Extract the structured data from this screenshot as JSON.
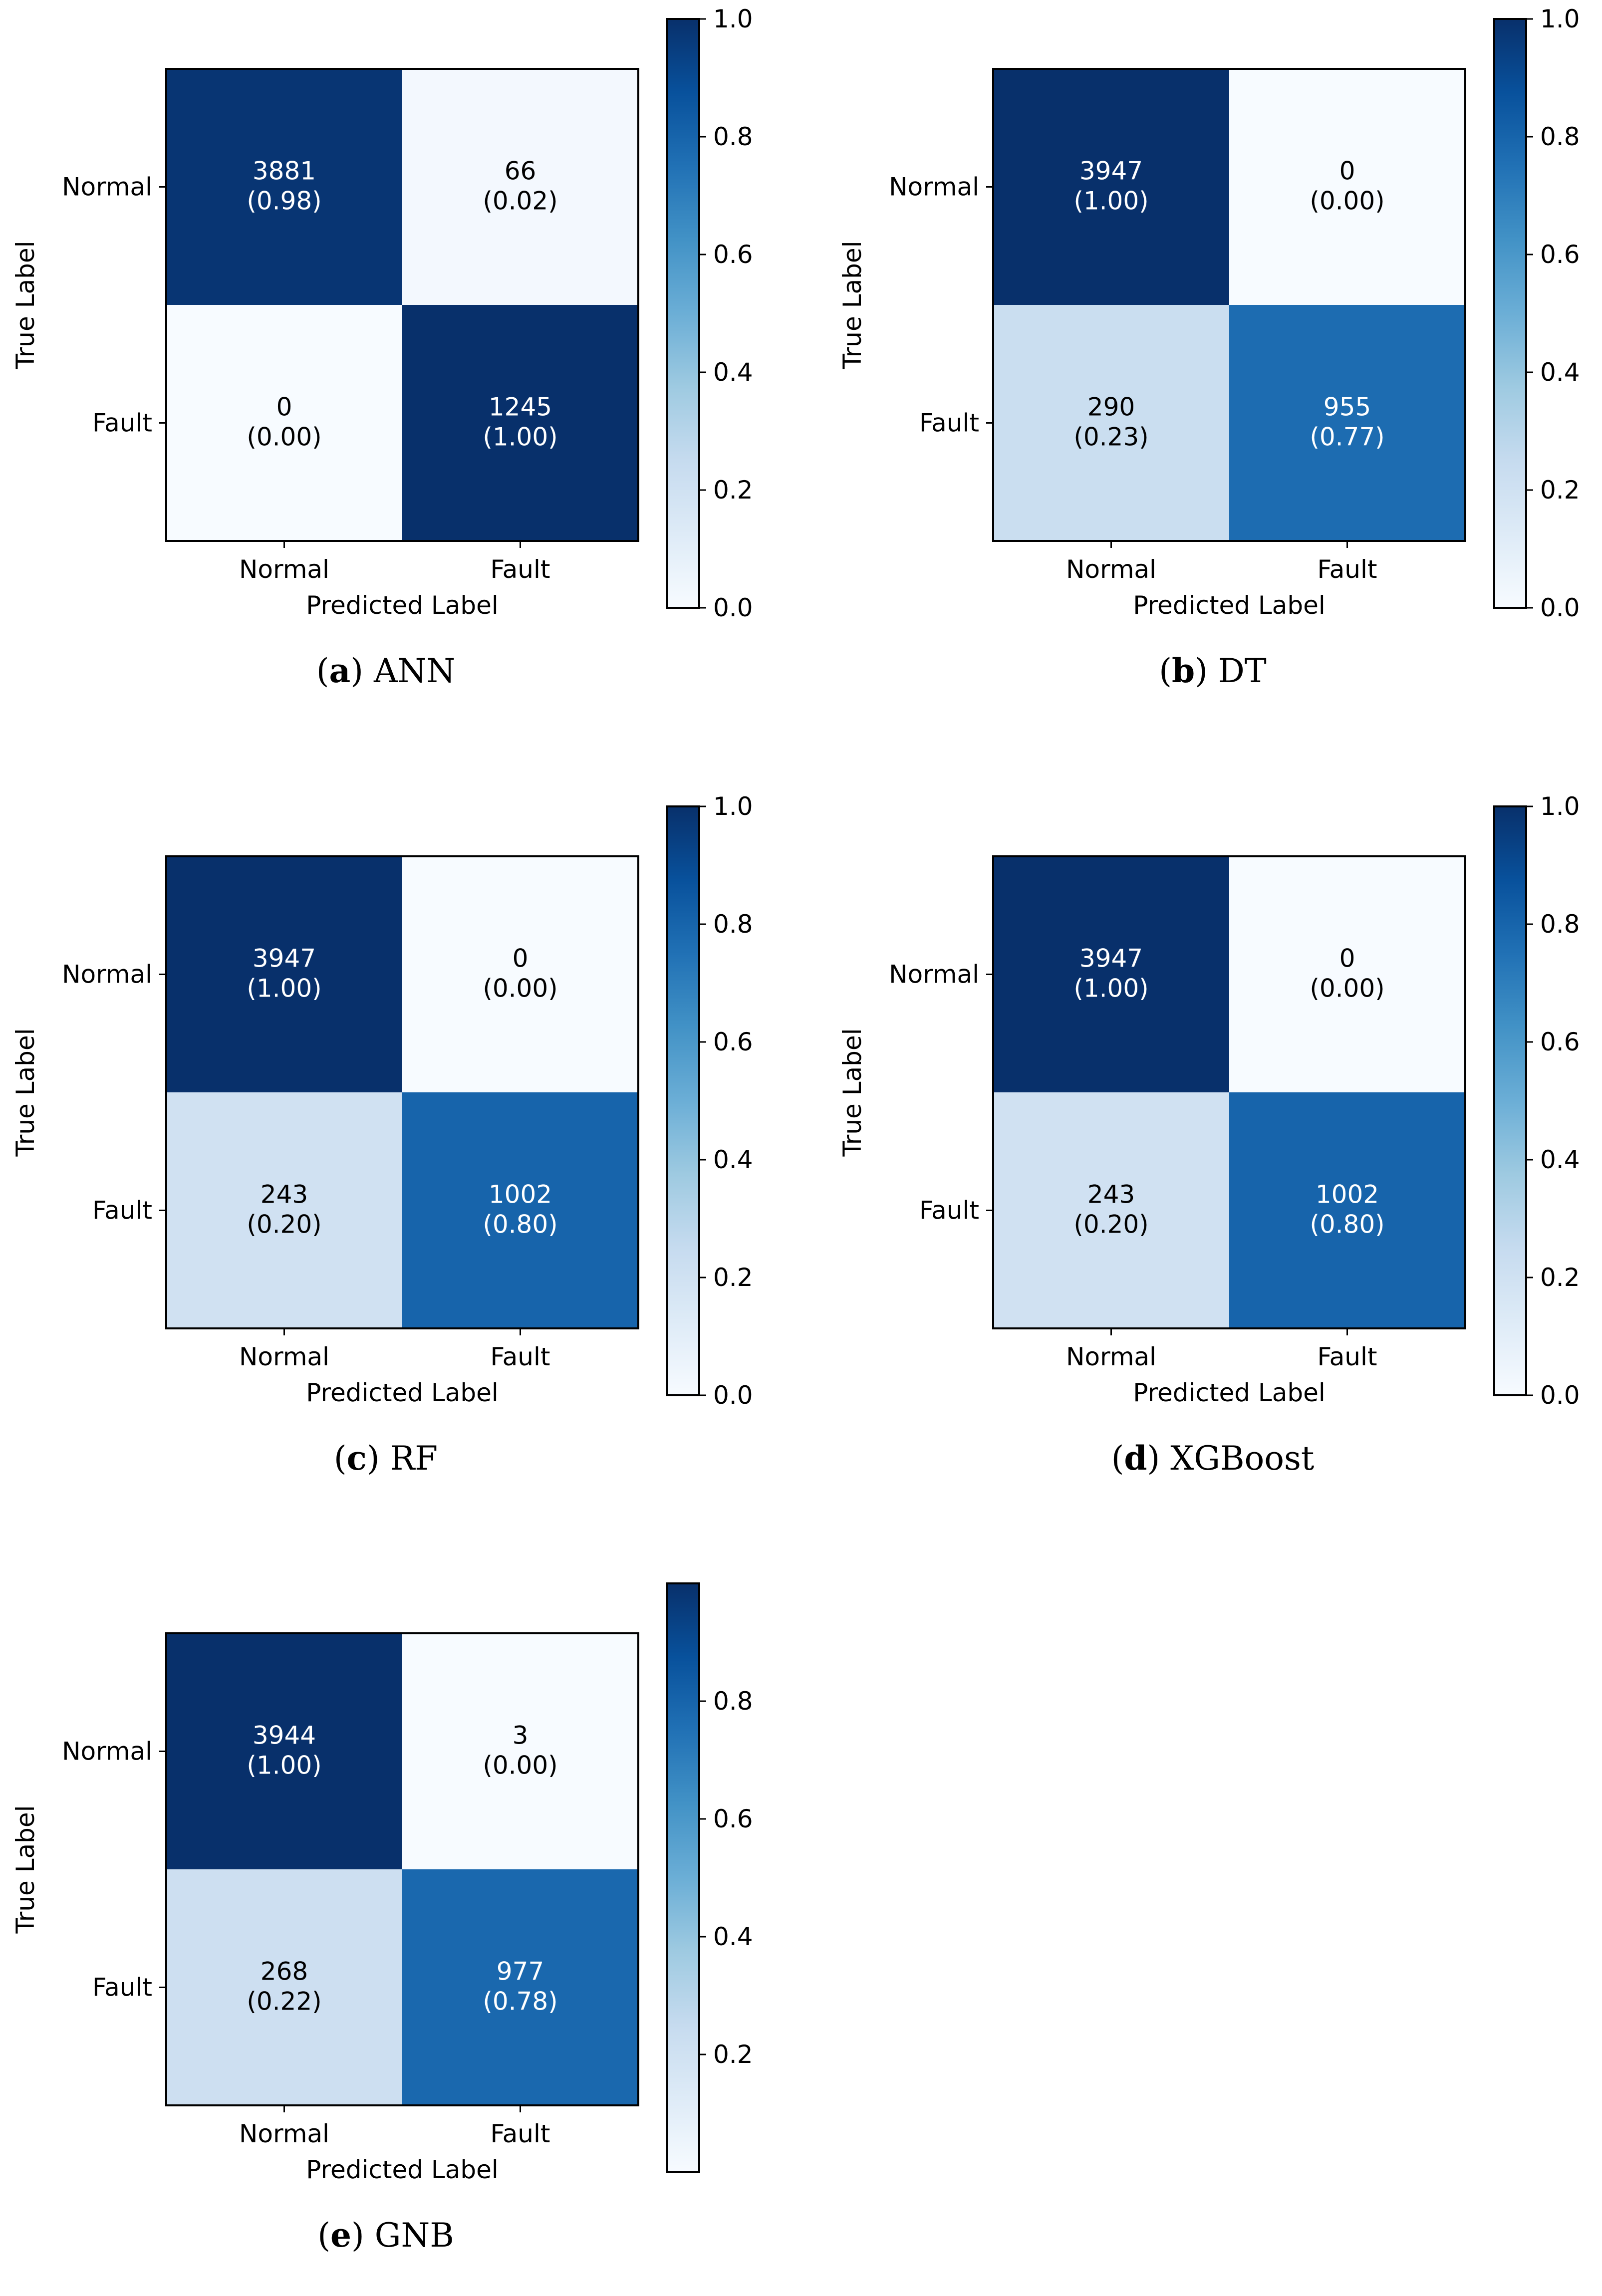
{
  "chart_data": [
    {
      "type": "heatmap",
      "caption_letter": "a",
      "caption_text": "ANN",
      "xlabel": "Predicted Label",
      "ylabel": "True Label",
      "x_categories": [
        "Normal",
        "Fault"
      ],
      "y_categories": [
        "Normal",
        "Fault"
      ],
      "counts": [
        [
          3881,
          66
        ],
        [
          0,
          1245
        ]
      ],
      "ratio_labels": [
        [
          "(0.98)",
          "(0.02)"
        ],
        [
          "(0.00)",
          "(1.00)"
        ]
      ],
      "ratios": [
        [
          0.98,
          0.02
        ],
        [
          0.0,
          1.0
        ]
      ],
      "colorbar": {
        "range": [
          0.0,
          1.0
        ],
        "ticks": [
          "0.0",
          "0.2",
          "0.4",
          "0.6",
          "0.8",
          "1.0"
        ]
      },
      "colormap": "Blues"
    },
    {
      "type": "heatmap",
      "caption_letter": "b",
      "caption_text": "DT",
      "xlabel": "Predicted Label",
      "ylabel": "True Label",
      "x_categories": [
        "Normal",
        "Fault"
      ],
      "y_categories": [
        "Normal",
        "Fault"
      ],
      "counts": [
        [
          3947,
          0
        ],
        [
          290,
          955
        ]
      ],
      "ratio_labels": [
        [
          "(1.00)",
          "(0.00)"
        ],
        [
          "(0.23)",
          "(0.77)"
        ]
      ],
      "ratios": [
        [
          1.0,
          0.0
        ],
        [
          0.23,
          0.77
        ]
      ],
      "colorbar": {
        "range": [
          0.0,
          1.0
        ],
        "ticks": [
          "0.0",
          "0.2",
          "0.4",
          "0.6",
          "0.8",
          "1.0"
        ]
      },
      "colormap": "Blues"
    },
    {
      "type": "heatmap",
      "caption_letter": "c",
      "caption_text": "RF",
      "xlabel": "Predicted Label",
      "ylabel": "True Label",
      "x_categories": [
        "Normal",
        "Fault"
      ],
      "y_categories": [
        "Normal",
        "Fault"
      ],
      "counts": [
        [
          3947,
          0
        ],
        [
          243,
          1002
        ]
      ],
      "ratio_labels": [
        [
          "(1.00)",
          "(0.00)"
        ],
        [
          "(0.20)",
          "(0.80)"
        ]
      ],
      "ratios": [
        [
          1.0,
          0.0
        ],
        [
          0.2,
          0.8
        ]
      ],
      "colorbar": {
        "range": [
          0.0,
          1.0
        ],
        "ticks": [
          "0.0",
          "0.2",
          "0.4",
          "0.6",
          "0.8",
          "1.0"
        ]
      },
      "colormap": "Blues"
    },
    {
      "type": "heatmap",
      "caption_letter": "d",
      "caption_text": "XGBoost",
      "xlabel": "Predicted Label",
      "ylabel": "True Label",
      "x_categories": [
        "Normal",
        "Fault"
      ],
      "y_categories": [
        "Normal",
        "Fault"
      ],
      "counts": [
        [
          3947,
          0
        ],
        [
          243,
          1002
        ]
      ],
      "ratio_labels": [
        [
          "(1.00)",
          "(0.00)"
        ],
        [
          "(0.20)",
          "(0.80)"
        ]
      ],
      "ratios": [
        [
          1.0,
          0.0
        ],
        [
          0.2,
          0.8
        ]
      ],
      "colorbar": {
        "range": [
          0.0,
          1.0
        ],
        "ticks": [
          "0.0",
          "0.2",
          "0.4",
          "0.6",
          "0.8",
          "1.0"
        ]
      },
      "colormap": "Blues"
    },
    {
      "type": "heatmap",
      "caption_letter": "e",
      "caption_text": "GNB",
      "xlabel": "Predicted Label",
      "ylabel": "True Label",
      "x_categories": [
        "Normal",
        "Fault"
      ],
      "y_categories": [
        "Normal",
        "Fault"
      ],
      "counts": [
        [
          3944,
          3
        ],
        [
          268,
          977
        ]
      ],
      "ratio_labels": [
        [
          "(1.00)",
          "(0.00)"
        ],
        [
          "(0.22)",
          "(0.78)"
        ]
      ],
      "ratios": [
        [
          0.999,
          0.001
        ],
        [
          0.215,
          0.785
        ]
      ],
      "colorbar": {
        "range": [
          0.0,
          1.0
        ],
        "ticks": [
          "0.2",
          "0.4",
          "0.6",
          "0.8"
        ]
      },
      "colormap": "Blues"
    }
  ]
}
